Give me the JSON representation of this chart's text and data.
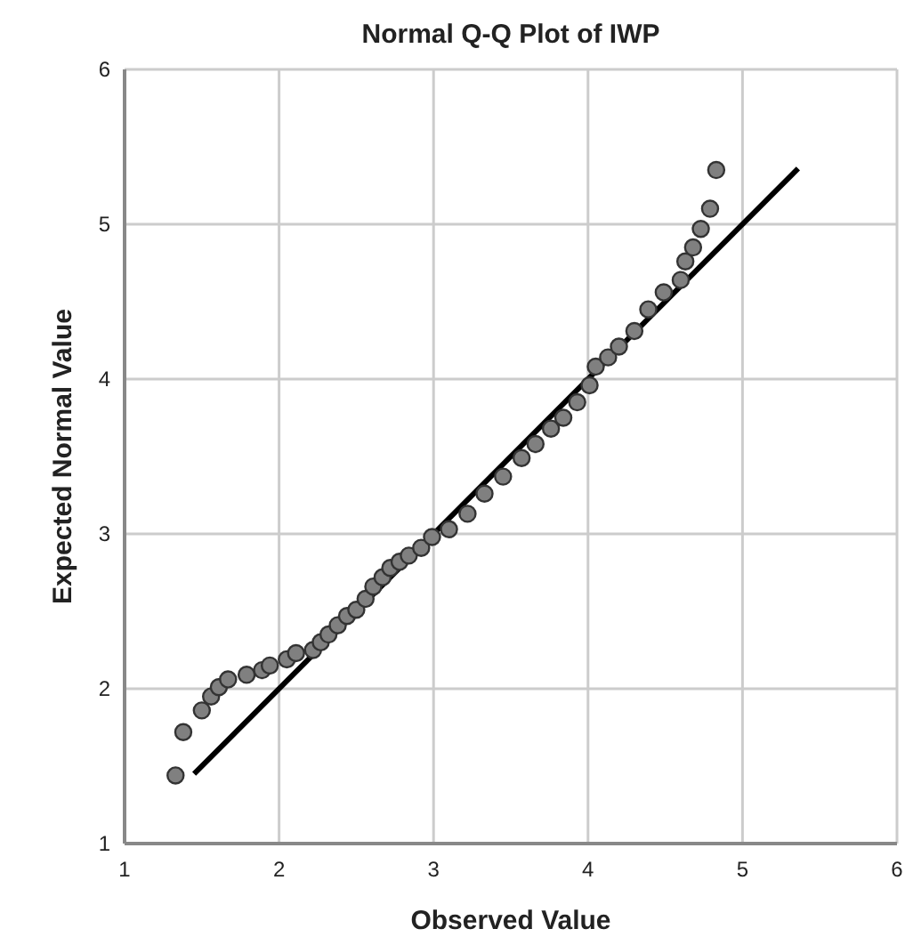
{
  "chart_data": {
    "type": "scatter",
    "title": "Normal Q-Q Plot of IWP",
    "xlabel": "Observed Value",
    "ylabel": "Expected Normal Value",
    "xlim": [
      1,
      6
    ],
    "ylim": [
      1,
      6
    ],
    "xticks": [
      1,
      2,
      3,
      4,
      5,
      6
    ],
    "yticks": [
      1,
      2,
      3,
      4,
      5,
      6
    ],
    "grid": true,
    "marker": "circle",
    "series": [
      {
        "type": "scatter",
        "color": "#808080",
        "x": [
          1.33,
          1.38,
          1.5,
          1.56,
          1.61,
          1.67,
          1.79,
          1.89,
          1.94,
          2.05,
          2.11,
          2.22,
          2.27,
          2.32,
          2.38,
          2.44,
          2.5,
          2.56,
          2.61,
          2.67,
          2.72,
          2.78,
          2.84,
          2.92,
          2.99,
          3.1,
          3.22,
          3.33,
          3.45,
          3.57,
          3.66,
          3.76,
          3.84,
          3.93,
          4.01,
          4.05,
          4.13,
          4.2,
          4.3,
          4.39,
          4.49,
          4.6,
          4.63,
          4.68,
          4.73,
          4.79,
          4.83
        ],
        "values": [
          1.44,
          1.72,
          1.86,
          1.95,
          2.01,
          2.06,
          2.09,
          2.12,
          2.15,
          2.19,
          2.23,
          2.25,
          2.3,
          2.35,
          2.41,
          2.47,
          2.51,
          2.58,
          2.66,
          2.72,
          2.78,
          2.82,
          2.86,
          2.91,
          2.98,
          3.03,
          3.13,
          3.26,
          3.37,
          3.49,
          3.58,
          3.68,
          3.75,
          3.85,
          3.96,
          4.08,
          4.14,
          4.21,
          4.31,
          4.45,
          4.56,
          4.64,
          4.76,
          4.85,
          4.97,
          5.1,
          5.35
        ]
      },
      {
        "type": "line",
        "color": "#000000",
        "marker": "none",
        "x": [
          1.45,
          5.36
        ],
        "values": [
          1.45,
          5.36
        ]
      }
    ]
  }
}
